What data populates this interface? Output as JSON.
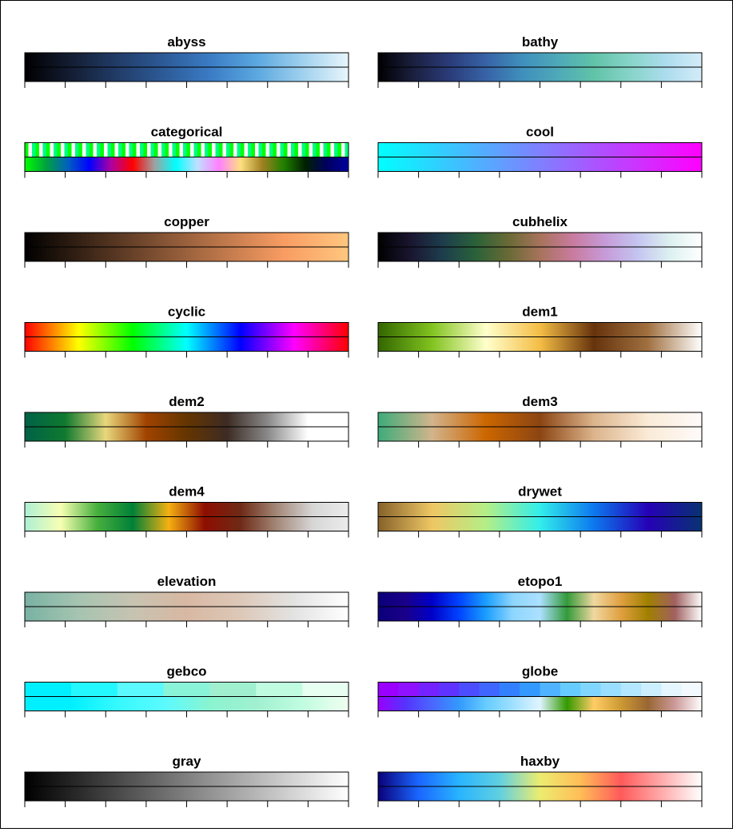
{
  "chart_data": {
    "type": "colormap-table",
    "columns": 2,
    "colormaps": [
      {
        "name": "abyss",
        "stops": [
          "#000000",
          "#141d33",
          "#213c68",
          "#2d5a96",
          "#3a7bc4",
          "#5aa7e0",
          "#9fd0ee",
          "#e8f6fc"
        ]
      },
      {
        "name": "bathy",
        "stops": [
          "#000000",
          "#1b2040",
          "#2a3c7a",
          "#3763a6",
          "#3f8fbc",
          "#4ea9b8",
          "#61c3a8",
          "#86d4c8",
          "#acdcee",
          "#d4ecf8"
        ]
      },
      {
        "name": "categorical",
        "stops": [
          "#00ff00",
          "#00a040",
          "#0060c0",
          "#0000ff",
          "#b000a0",
          "#ff0000",
          "#a0a0a0",
          "#00ffff",
          "#c0e0ff",
          "#ff80ff",
          "#ffe080",
          "#a08020",
          "#208000",
          "#002000",
          "#000060",
          "#0000a0"
        ],
        "discrete_colors": [
          "#00ff00",
          "#ff00ff",
          "#0000ff",
          "#ffff00",
          "#00ffff",
          "#ff0000",
          "#808080",
          "#ffffff",
          "#000000",
          "#ff8000",
          "#80ff00",
          "#0080ff",
          "#ff0080",
          "#8000ff",
          "#00ff80",
          "#ffa0a0",
          "#a0ffa0",
          "#a0a0ff",
          "#804000",
          "#408000",
          "#004080"
        ]
      },
      {
        "name": "cool",
        "stops": [
          "#00ffff",
          "#55aaff",
          "#aa55ff",
          "#ff00ff"
        ]
      },
      {
        "name": "copper",
        "stops": [
          "#000000",
          "#3e2718",
          "#7c4e31",
          "#ba7549",
          "#f89c62",
          "#ffc77f"
        ]
      },
      {
        "name": "cubhelix",
        "stops": [
          "#000000",
          "#1a1530",
          "#1d3d4d",
          "#2a6139",
          "#676a35",
          "#a7735b",
          "#c97b9d",
          "#c69ad8",
          "#c4c4f0",
          "#dcf0f0",
          "#ffffff"
        ]
      },
      {
        "name": "cyclic",
        "stops": [
          "#ff0000",
          "#ffff00",
          "#00ff00",
          "#00ffff",
          "#0000ff",
          "#ff00ff",
          "#ff0000"
        ]
      },
      {
        "name": "dem1",
        "stops": [
          "#336600",
          "#81c31f",
          "#ffffcc",
          "#f4bd45",
          "#66330c",
          "#a07040",
          "#ffffff"
        ]
      },
      {
        "name": "dem2",
        "stops": [
          "#006147",
          "#107a2f",
          "#e8d77d",
          "#a14300",
          "#643500",
          "#3d2b24",
          "#898989",
          "#ffffff",
          "#ffffff"
        ]
      },
      {
        "name": "dem3",
        "stops": [
          "#3cac7a",
          "#d2b48c",
          "#cc6600",
          "#8b4513",
          "#dcb48c",
          "#faebd7",
          "#fffafa"
        ]
      },
      {
        "name": "dem4",
        "stops": [
          "#aeefd5",
          "#f7ffb2",
          "#48b03d",
          "#008038",
          "#f5b012",
          "#8e0e00",
          "#6e2a17",
          "#a38777",
          "#d6d6d6",
          "#ececec"
        ]
      },
      {
        "name": "drywet",
        "stops": [
          "#86612a",
          "#eec764",
          "#b4ee87",
          "#32eeeb",
          "#0c78ee",
          "#2601b7",
          "#083371"
        ]
      },
      {
        "name": "elevation",
        "stops": [
          "#79b2a3",
          "#a6c4b1",
          "#c7c3b1",
          "#d8b8a3",
          "#ddc8b8",
          "#e3e3e3",
          "#ffffff"
        ]
      },
      {
        "name": "etopo1",
        "stops": [
          "#0a0079",
          "#1a0089",
          "#0000c8",
          "#0043ff",
          "#1a9eff",
          "#8ed6ff",
          "#ace0ff",
          "#339a3a",
          "#f0d8a0",
          "#e0a040",
          "#a08000",
          "#a06060",
          "#ffffff"
        ]
      },
      {
        "name": "gebco",
        "stops": [
          "#00f0ff",
          "#00f0ff",
          "#35f9ff",
          "#5afaff",
          "#8af4d0",
          "#a0f0d0",
          "#c0fce0",
          "#f0fff0"
        ],
        "discrete_colors": [
          "#00f0ff",
          "#23f8ff",
          "#5afaff",
          "#8af4d8",
          "#a0f0d0",
          "#c0fce0",
          "#e6fff0"
        ]
      },
      {
        "name": "globe",
        "stops": [
          "#9900ff",
          "#5533ff",
          "#4a66ff",
          "#3399ff",
          "#66ccff",
          "#a0e0ff",
          "#dff4ff",
          "#339900",
          "#ffcc66",
          "#cc9933",
          "#996633",
          "#cc9999",
          "#ffffff"
        ],
        "discrete_colors": [
          "#9900ff",
          "#9011ff",
          "#7422ff",
          "#5f33ff",
          "#4c4dff",
          "#3f66ff",
          "#3380ff",
          "#3399ff",
          "#4fb3ff",
          "#66ccff",
          "#80d6ff",
          "#99ddff",
          "#b3e6ff",
          "#ccefff",
          "#e6f6ff",
          "#f2faff"
        ]
      },
      {
        "name": "gray",
        "stops": [
          "#000000",
          "#ffffff"
        ]
      },
      {
        "name": "haxby",
        "stops": [
          "#0a0079",
          "#1a66ff",
          "#28b4ff",
          "#60d0e0",
          "#ecec70",
          "#ffbd57",
          "#ff5a5a",
          "#ffaaaa",
          "#ffffff"
        ]
      }
    ]
  }
}
